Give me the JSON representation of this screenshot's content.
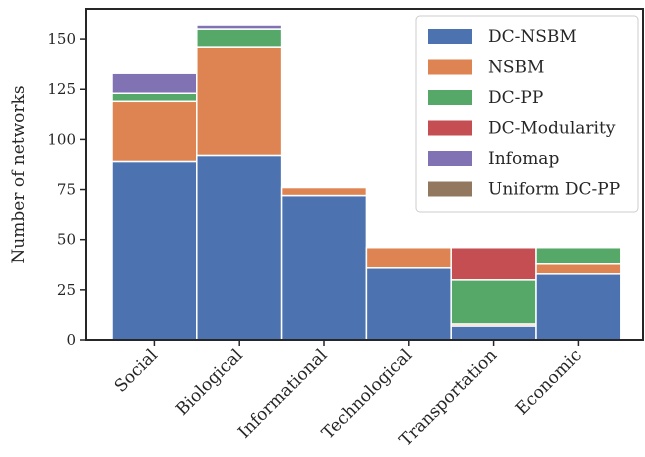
{
  "chart_data": {
    "type": "bar",
    "stacked": true,
    "title": "",
    "xlabel": "",
    "ylabel": "Number of networks",
    "ylim": [
      0,
      165
    ],
    "yticks": [
      0,
      25,
      50,
      75,
      100,
      125,
      150
    ],
    "grid": false,
    "legend_position": "top-right",
    "categories": [
      "Social",
      "Biological",
      "Informational",
      "Technological",
      "Transportation",
      "Economic"
    ],
    "series": [
      {
        "name": "DC-NSBM",
        "color": "#4c72b0",
        "values": [
          89,
          92,
          72,
          36,
          7,
          33
        ]
      },
      {
        "name": "NSBM",
        "color": "#dd8452",
        "values": [
          30,
          54,
          4,
          10,
          1,
          5
        ]
      },
      {
        "name": "DC-PP",
        "color": "#55a868",
        "values": [
          4,
          9,
          0,
          0,
          22,
          8
        ]
      },
      {
        "name": "DC-Modularity",
        "color": "#c44e52",
        "values": [
          0,
          0,
          0,
          0,
          16,
          0
        ]
      },
      {
        "name": "Infomap",
        "color": "#8172b3",
        "values": [
          10,
          2,
          0,
          0,
          0,
          0
        ]
      },
      {
        "name": "Uniform DC-PP",
        "color": "#937860",
        "values": [
          0,
          0,
          0,
          0,
          0,
          0
        ]
      }
    ]
  }
}
